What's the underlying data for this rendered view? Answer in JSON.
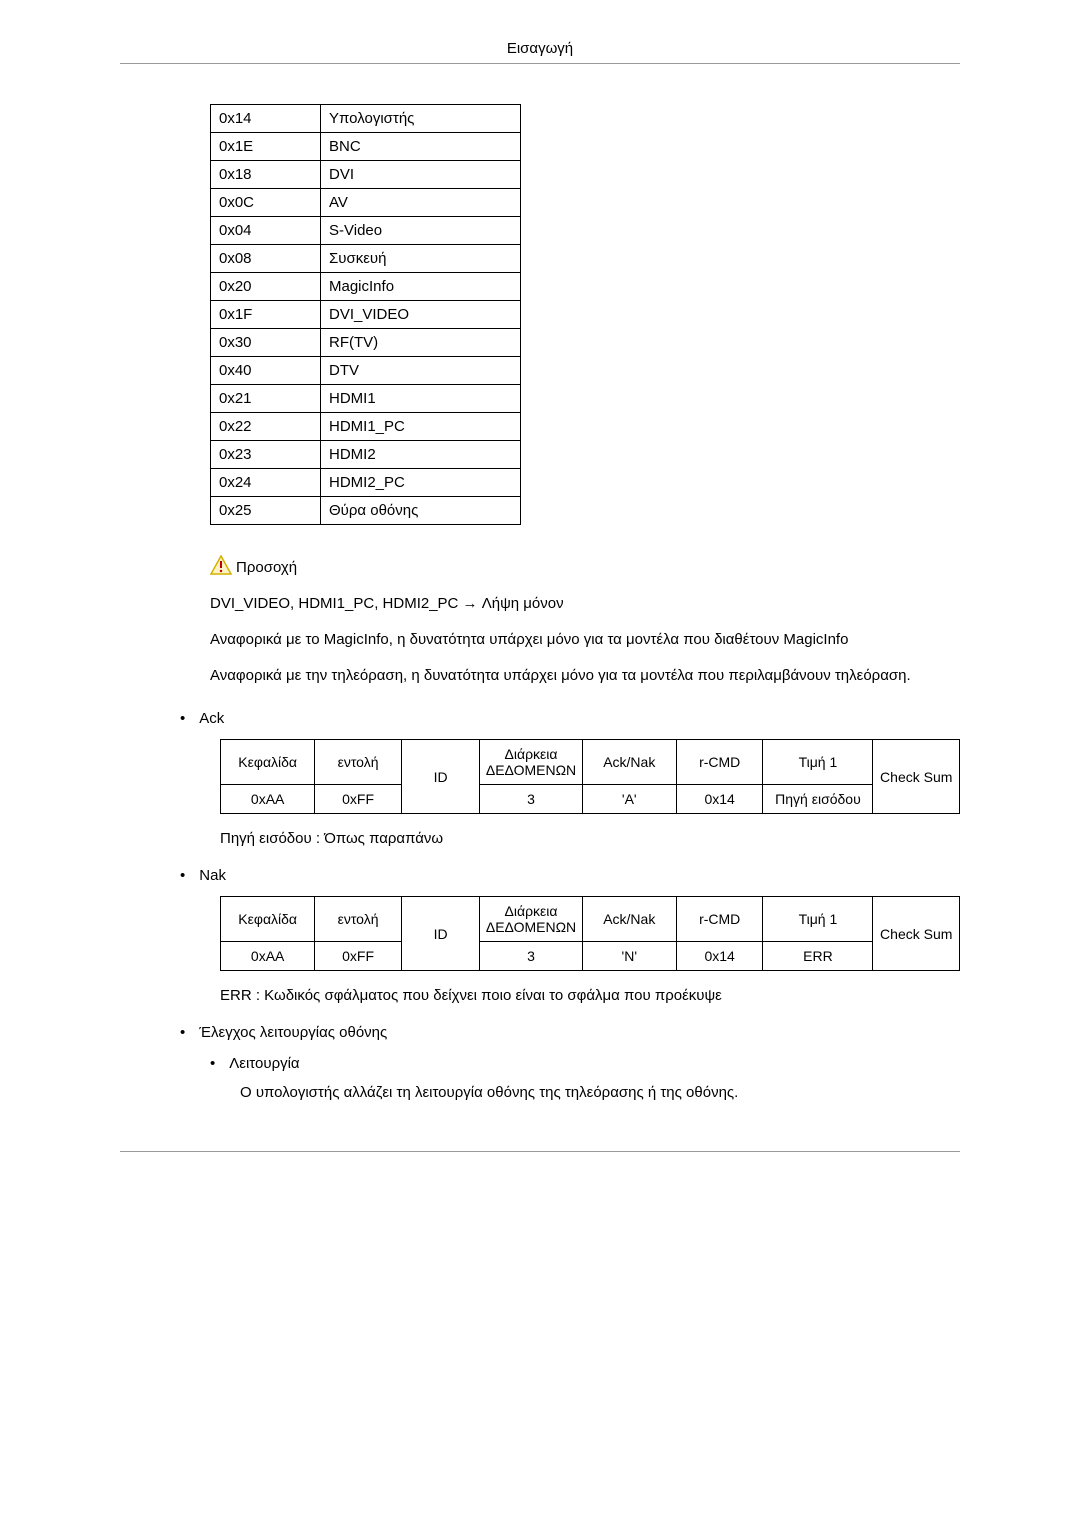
{
  "page_header": "Εισαγωγή",
  "codes": {
    "columns": [
      "code",
      "label"
    ],
    "rows": [
      [
        "0x14",
        "Υπολογιστής"
      ],
      [
        "0x1E",
        "BNC"
      ],
      [
        "0x18",
        "DVI"
      ],
      [
        "0x0C",
        "AV"
      ],
      [
        "0x04",
        "S-Video"
      ],
      [
        "0x08",
        "Συσκευή"
      ],
      [
        "0x20",
        "MagicInfo"
      ],
      [
        "0x1F",
        "DVI_VIDEO"
      ],
      [
        "0x30",
        "RF(TV)"
      ],
      [
        "0x40",
        "DTV"
      ],
      [
        "0x21",
        "HDMI1"
      ],
      [
        "0x22",
        "HDMI1_PC"
      ],
      [
        "0x23",
        "HDMI2"
      ],
      [
        "0x24",
        "HDMI2_PC"
      ],
      [
        "0x25",
        "Θύρα οθόνης"
      ]
    ]
  },
  "warning": {
    "title": "Προσοχή",
    "line1": "DVI_VIDEO, HDMI1_PC, HDMI2_PC → Λήψη μόνον",
    "line2": "Αναφορικά με το MagicInfo, η δυνατότητα υπάρχει μόνο για τα μοντέλα που διαθέτουν MagicInfo",
    "line3": "Αναφορικά με την τηλεόραση, η δυνατότητα υπάρχει μόνο για τα μοντέλα που περιλαμβάνουν τηλεόραση."
  },
  "ack": {
    "label": "Ack",
    "headers": [
      "Κεφαλίδα",
      "εντολή",
      "ID",
      "Διάρκεια ΔΕΔΟΜΕΝΩΝ",
      "Ack/Nak",
      "r-CMD",
      "Τιμή 1",
      "Check Sum"
    ],
    "row": [
      "0xAA",
      "0xFF",
      "",
      "3",
      "'A'",
      "0x14",
      "Πηγή εισόδου",
      ""
    ],
    "note": "Πηγή εισόδου : Όπως παραπάνω"
  },
  "nak": {
    "label": "Nak",
    "headers": [
      "Κεφαλίδα",
      "εντολή",
      "ID",
      "Διάρκεια ΔΕΔΟΜΕΝΩΝ",
      "Ack/Nak",
      "r-CMD",
      "Τιμή 1",
      "Check Sum"
    ],
    "row": [
      "0xAA",
      "0xFF",
      "",
      "3",
      "'N'",
      "0x14",
      "ERR",
      ""
    ],
    "note": "ERR : Κωδικός σφάλματος που δείχνει ποιο είναι το σφάλμα που προέκυψε"
  },
  "screen_control": {
    "bullet1": "Έλεγχος λειτουργίας οθόνης",
    "bullet2": "Λειτουργία",
    "desc": "Ο υπολογιστής αλλάζει τη λειτουργία οθόνης της τηλεόρασης ή της οθόνης."
  },
  "colors": {
    "text": "#000000",
    "border": "#000000",
    "rule": "#999999",
    "warning_triangle_border": "#d4b000",
    "warning_triangle_fill": "#fdf3c4",
    "warning_triangle_mark": "#c00000"
  }
}
